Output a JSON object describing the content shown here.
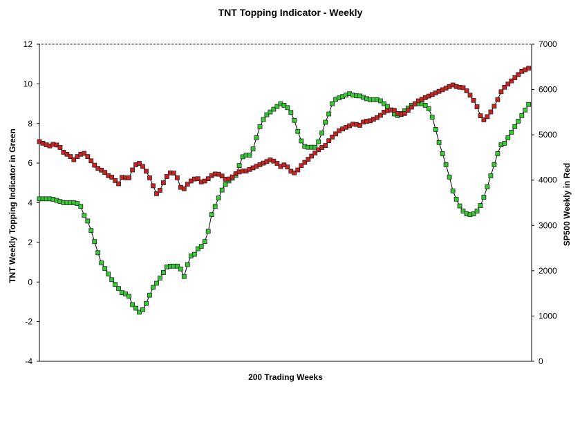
{
  "chart_data": {
    "type": "line",
    "title": "TNT Topping Indicator - Weekly",
    "xlabel": "200 Trading Weeks",
    "ylabel_left": "TNT Weekly Topping Indicator in Green",
    "ylabel_right": "SP500 Weekly in Red",
    "ylim_left": [
      -4,
      12
    ],
    "ylim_right": [
      0,
      7000
    ],
    "yticks_left": [
      "12",
      "10",
      "8",
      "6",
      "4",
      "2",
      "0",
      "-2",
      "-4"
    ],
    "yticks_right": [
      "7000",
      "6000",
      "5000",
      "4000",
      "3000",
      "2000",
      "1000",
      "0"
    ],
    "xlim": [
      0,
      200
    ],
    "grid": false,
    "colors": {
      "tnt": "#33cc33",
      "sp500": "#cc2222",
      "line": "#000000"
    },
    "series": [
      {
        "name": "TNT Weekly Topping Indicator",
        "axis": "left",
        "x": [
          0,
          5,
          10,
          13,
          15,
          17,
          18,
          20,
          22,
          25,
          28,
          30,
          34,
          36,
          38,
          40,
          41,
          42,
          43,
          44,
          45,
          46,
          48,
          50,
          52,
          54,
          56,
          58,
          59,
          60,
          61,
          62,
          63,
          64,
          65,
          66,
          67,
          68,
          69,
          70,
          72,
          74,
          76,
          78,
          80,
          81,
          82,
          83,
          84,
          85,
          86,
          87,
          88,
          89,
          90,
          91,
          92,
          93,
          94,
          96,
          98,
          99,
          100,
          101,
          102,
          103,
          104,
          106,
          108,
          110,
          111,
          112,
          113,
          114,
          115,
          116,
          118,
          119,
          120,
          122,
          124,
          126,
          128,
          130,
          132,
          134,
          136,
          138,
          140,
          142,
          144,
          145,
          146,
          148,
          150,
          152,
          154,
          156,
          158,
          160,
          162,
          164,
          166,
          168,
          170,
          172,
          174,
          175,
          176,
          177,
          178,
          179,
          180,
          181,
          182,
          183,
          184,
          185,
          186,
          187,
          188,
          189,
          190,
          191,
          192,
          193,
          194,
          195,
          196,
          197,
          198,
          199,
          200
        ],
        "y": [
          4.2,
          4.2,
          4.0,
          4.0,
          4.0,
          3.8,
          3.4,
          3.0,
          2.2,
          1.0,
          0.4,
          0.0,
          -0.6,
          -0.6,
          -1.2,
          -1.4,
          -1.6,
          -1.4,
          -1.2,
          -0.9,
          -0.6,
          -0.3,
          0.0,
          0.4,
          0.8,
          0.8,
          0.8,
          0.6,
          0.2,
          0.8,
          1.2,
          1.4,
          1.4,
          1.6,
          1.8,
          1.8,
          2.0,
          2.2,
          2.8,
          3.4,
          4.0,
          4.6,
          5.0,
          5.2,
          5.4,
          5.8,
          6.2,
          6.4,
          6.4,
          6.4,
          6.4,
          6.8,
          7.2,
          7.6,
          8.0,
          8.2,
          8.4,
          8.5,
          8.6,
          8.8,
          9.0,
          9.0,
          8.8,
          8.8,
          8.6,
          8.4,
          8.0,
          7.2,
          6.8,
          6.8,
          6.8,
          6.8,
          7.0,
          7.2,
          7.6,
          8.0,
          8.6,
          9.0,
          9.2,
          9.3,
          9.4,
          9.5,
          9.4,
          9.4,
          9.3,
          9.2,
          9.2,
          9.2,
          9.0,
          8.8,
          8.5,
          8.4,
          8.4,
          8.6,
          8.8,
          9.0,
          9.0,
          9.0,
          8.8,
          8.2,
          7.2,
          6.4,
          5.6,
          4.6,
          4.0,
          3.6,
          3.4,
          3.4,
          3.4,
          3.5,
          3.6,
          3.8,
          4.1,
          4.4,
          4.8,
          5.2,
          5.6,
          6.0,
          6.4,
          6.8,
          7.0,
          7.0,
          7.2,
          7.4,
          7.6,
          7.8,
          8.0,
          8.2,
          8.4,
          8.6,
          8.8,
          9.0,
          9.2
        ]
      },
      {
        "name": "SP500 Weekly",
        "axis": "right",
        "x": [
          0,
          2,
          4,
          6,
          8,
          10,
          12,
          14,
          16,
          18,
          20,
          22,
          24,
          26,
          28,
          30,
          32,
          34,
          36,
          38,
          40,
          42,
          44,
          46,
          48,
          50,
          52,
          54,
          56,
          58,
          60,
          62,
          64,
          66,
          68,
          70,
          72,
          74,
          76,
          78,
          80,
          82,
          84,
          86,
          88,
          90,
          92,
          94,
          96,
          98,
          100,
          102,
          104,
          106,
          108,
          110,
          112,
          114,
          116,
          118,
          120,
          122,
          124,
          126,
          128,
          130,
          132,
          134,
          136,
          138,
          140,
          142,
          144,
          146,
          148,
          150,
          152,
          154,
          156,
          158,
          160,
          162,
          164,
          166,
          168,
          170,
          172,
          174,
          176,
          178,
          180,
          182,
          184,
          186,
          188,
          190,
          192,
          194,
          196,
          198,
          200
        ],
        "y": [
          4850,
          4800,
          4750,
          4800,
          4750,
          4600,
          4550,
          4450,
          4550,
          4600,
          4500,
          4350,
          4250,
          4200,
          4100,
          4050,
          3900,
          4100,
          4000,
          4250,
          4400,
          4300,
          4150,
          3900,
          3650,
          3900,
          4100,
          4200,
          4050,
          3750,
          3900,
          4000,
          4050,
          3950,
          4000,
          4100,
          4150,
          4100,
          4000,
          4050,
          4150,
          4200,
          4200,
          4250,
          4300,
          4350,
          4400,
          4450,
          4400,
          4300,
          4350,
          4200,
          4150,
          4300,
          4400,
          4500,
          4600,
          4700,
          4750,
          4900,
          5000,
          5100,
          5150,
          5200,
          5250,
          5200,
          5300,
          5300,
          5350,
          5400,
          5500,
          5550,
          5550,
          5450,
          5450,
          5550,
          5650,
          5750,
          5800,
          5850,
          5900,
          5950,
          6000,
          6050,
          6100,
          6050,
          6050,
          5950,
          5800,
          5600,
          5300,
          5400,
          5550,
          5750,
          6000,
          6100,
          6200,
          6300,
          6400,
          6450,
          6500
        ]
      }
    ]
  }
}
